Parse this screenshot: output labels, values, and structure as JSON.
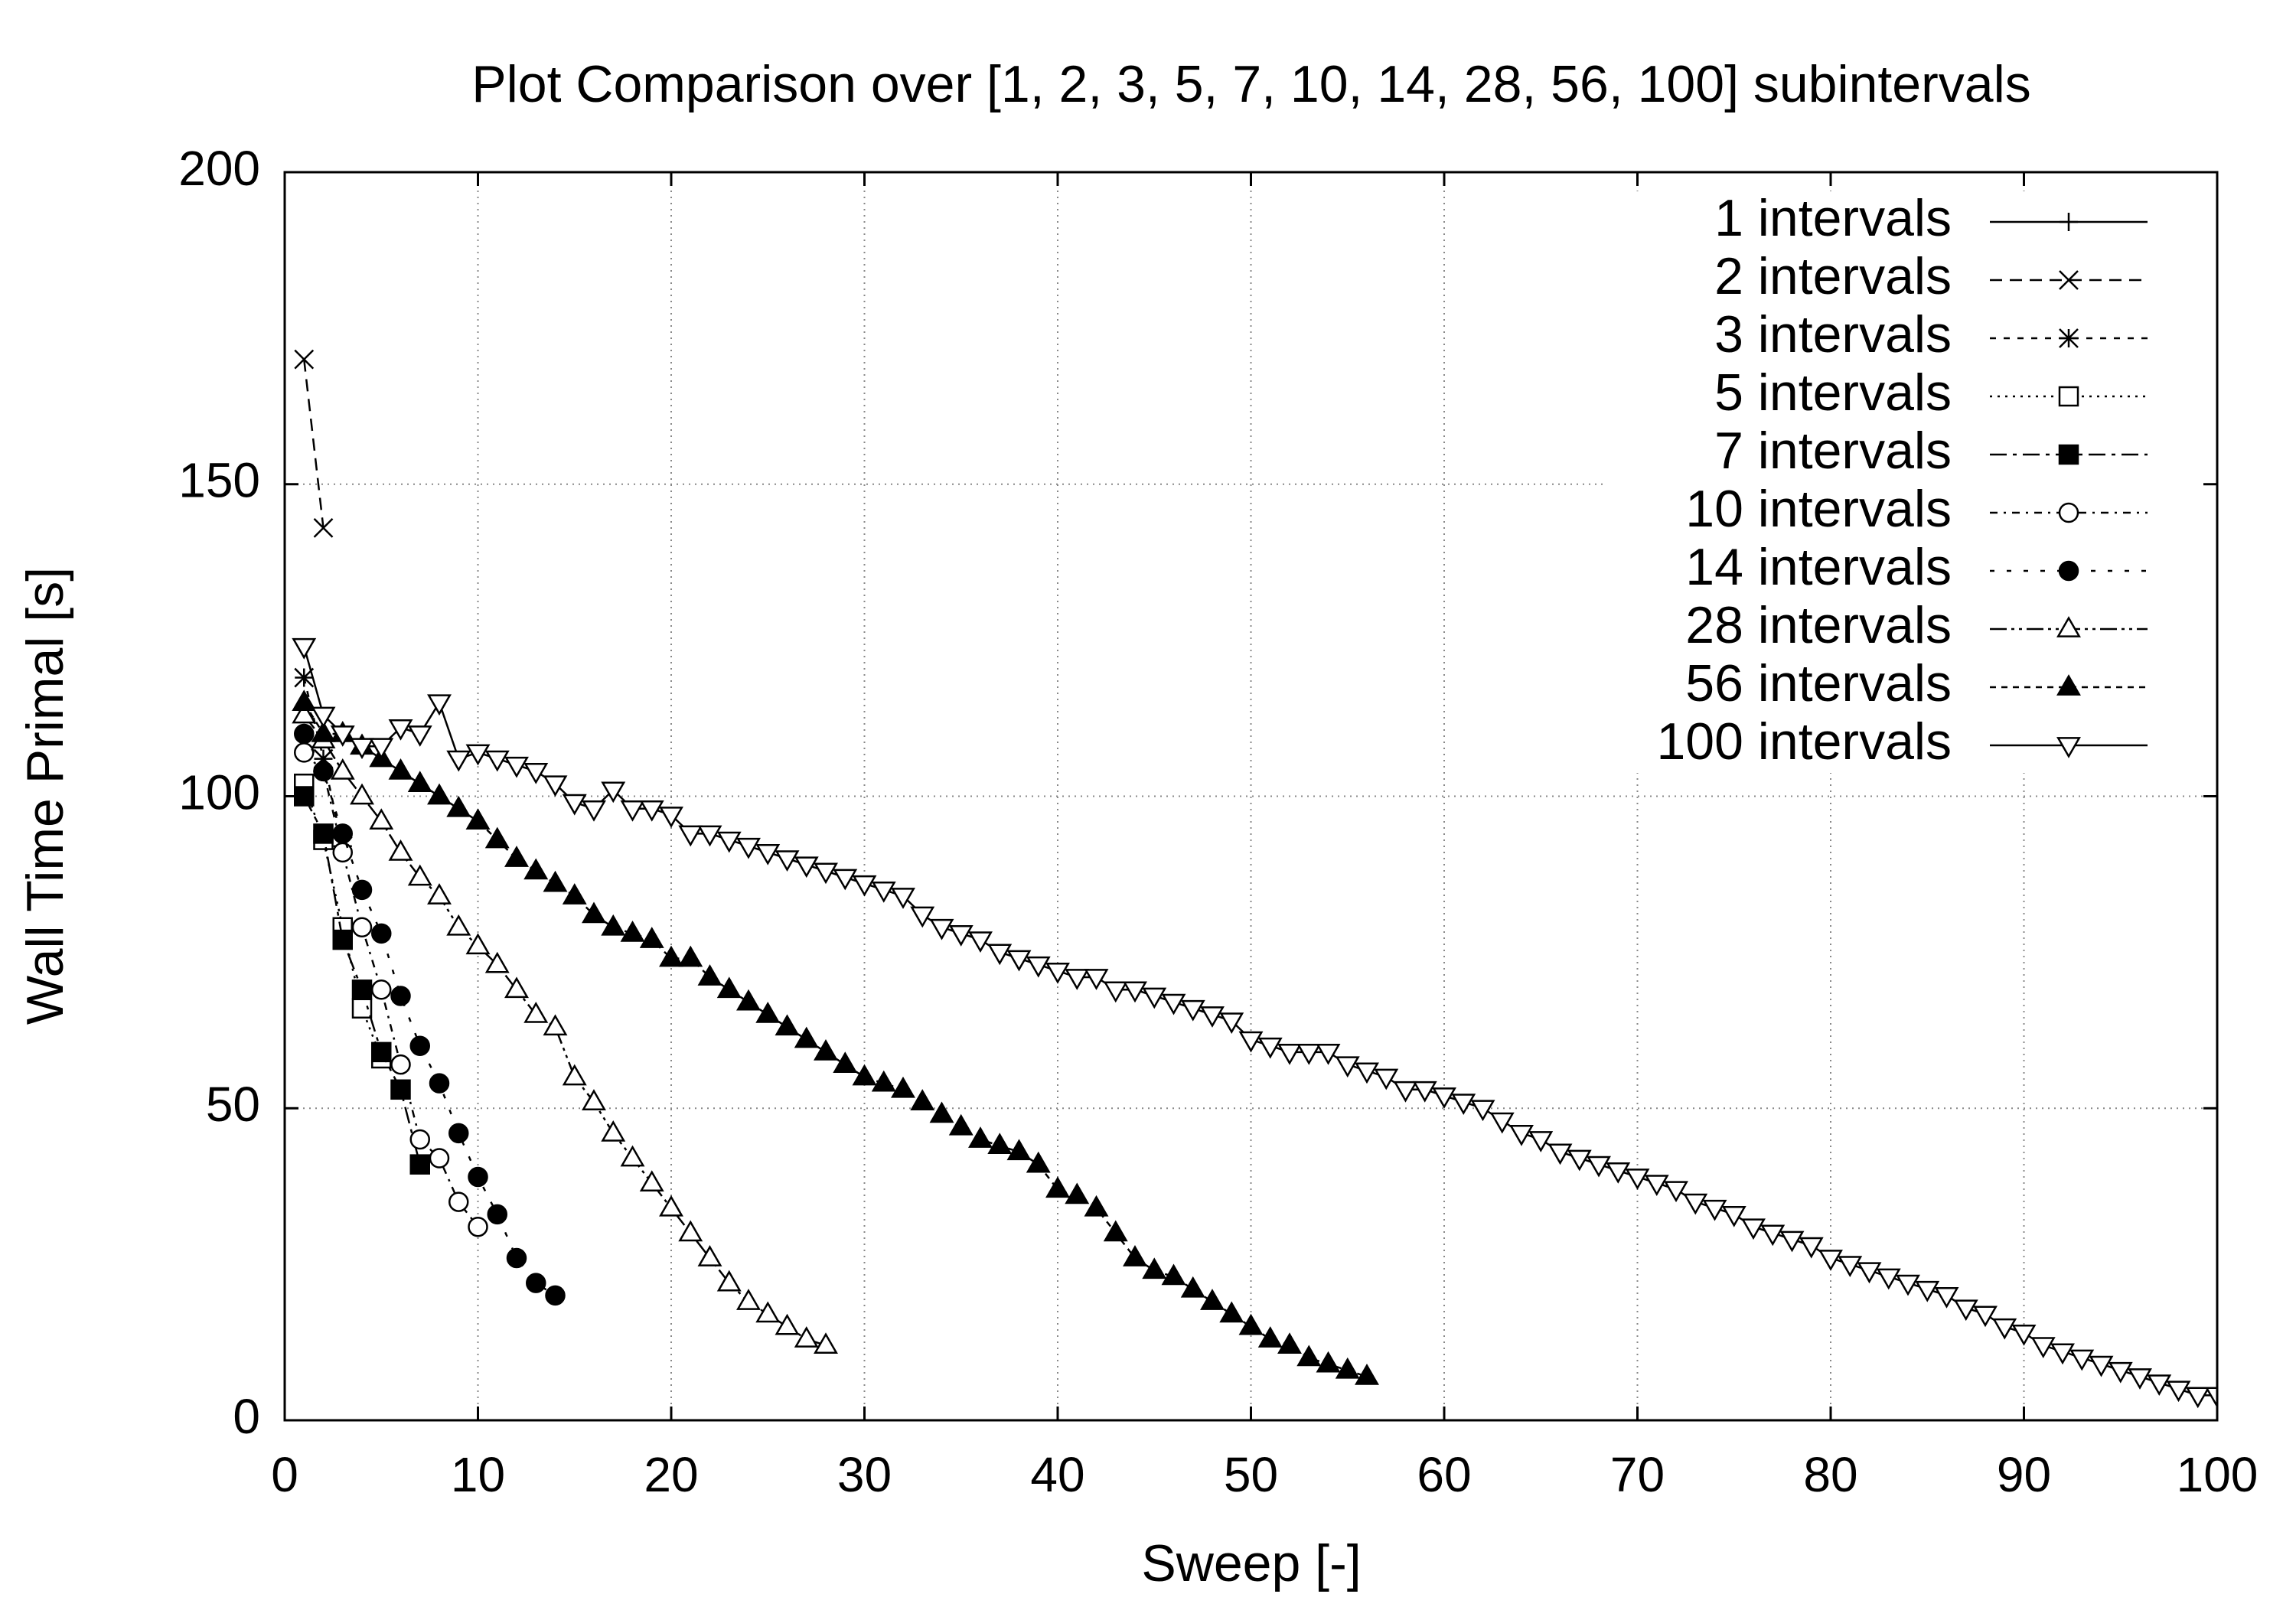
{
  "chart_data": {
    "type": "line",
    "title": "Plot Comparison over [1, 2, 3, 5, 7, 10, 14, 28, 56, 100] subintervals",
    "x_label": "Sweep [-]",
    "y_label": "Wall Time Primal [s]",
    "xlim": [
      0,
      100
    ],
    "xticks": [
      0,
      10,
      20,
      30,
      40,
      50,
      60,
      70,
      80,
      90,
      100
    ],
    "ylim": [
      0,
      200
    ],
    "yticks": [
      0,
      50,
      100,
      150,
      200
    ],
    "grid": true,
    "legend": "top-right",
    "series": [
      {
        "name": "1 intervals",
        "color": "#000000",
        "marker": "plus",
        "line": "solid",
        "x": [],
        "values": []
      },
      {
        "name": "2 intervals",
        "color": "#000000",
        "marker": "cross",
        "line": "dashed",
        "x": [
          1,
          2
        ],
        "values": [
          170,
          143
        ]
      },
      {
        "name": "3 intervals",
        "color": "#000000",
        "marker": "star",
        "line": "short-dashed",
        "x": [
          1,
          2,
          3
        ],
        "values": [
          119,
          106,
          92
        ]
      },
      {
        "name": "5 intervals",
        "color": "#000000",
        "marker": "square",
        "line": "dotted",
        "x": [
          1,
          2,
          3,
          4,
          5
        ],
        "values": [
          102,
          93,
          79,
          66,
          58
        ]
      },
      {
        "name": "7 intervals",
        "color": "#000000",
        "marker": "filled-square",
        "line": "dash-dot",
        "x": [
          1,
          2,
          3,
          4,
          5,
          6,
          7
        ],
        "values": [
          100,
          94,
          77,
          69,
          59,
          53,
          41
        ]
      },
      {
        "name": "10 intervals",
        "color": "#000000",
        "marker": "circle",
        "line": "dash-dot-fine",
        "x": [
          1,
          2,
          3,
          4,
          5,
          6,
          7,
          8,
          9,
          10
        ],
        "values": [
          107,
          104,
          91,
          79,
          69,
          57,
          45,
          42,
          35,
          31
        ]
      },
      {
        "name": "14 intervals",
        "color": "#000000",
        "marker": "filled-circle",
        "line": "sparse",
        "x": [
          1,
          2,
          3,
          4,
          5,
          6,
          7,
          8,
          9,
          10,
          11,
          12,
          13,
          14
        ],
        "values": [
          110,
          104,
          94,
          85,
          78,
          68,
          60,
          54,
          46,
          39,
          33,
          26,
          22,
          20
        ]
      },
      {
        "name": "28 intervals",
        "color": "#000000",
        "marker": "triangle",
        "line": "dash-dot-dot",
        "x": [
          1,
          2,
          3,
          4,
          5,
          6,
          7,
          8,
          9,
          10,
          11,
          12,
          13,
          14,
          15,
          16,
          17,
          18,
          19,
          20,
          21,
          22,
          23,
          24,
          25,
          26,
          27,
          28
        ],
        "values": [
          113,
          109,
          104,
          100,
          96,
          91,
          87,
          84,
          79,
          76,
          73,
          69,
          65,
          63,
          55,
          51,
          46,
          42,
          38,
          34,
          30,
          26,
          22,
          19,
          17,
          15,
          13,
          12
        ]
      },
      {
        "name": "56 intervals",
        "color": "#000000",
        "marker": "filled-triangle",
        "line": "fine-dashed",
        "x": [
          1,
          2,
          3,
          4,
          5,
          6,
          7,
          8,
          9,
          10,
          11,
          12,
          13,
          14,
          15,
          16,
          17,
          18,
          19,
          20,
          21,
          22,
          23,
          24,
          25,
          26,
          27,
          28,
          29,
          30,
          31,
          32,
          33,
          34,
          35,
          36,
          37,
          38,
          39,
          40,
          41,
          42,
          43,
          44,
          45,
          46,
          47,
          48,
          49,
          50,
          51,
          52,
          53,
          54,
          55,
          56
        ],
        "values": [
          115,
          110,
          110,
          108,
          106,
          104,
          102,
          100,
          98,
          96,
          93,
          90,
          88,
          86,
          84,
          81,
          79,
          78,
          77,
          74,
          74,
          71,
          69,
          67,
          65,
          63,
          61,
          59,
          57,
          55,
          54,
          53,
          51,
          49,
          47,
          45,
          44,
          43,
          41,
          37,
          36,
          34,
          30,
          26,
          24,
          23,
          21,
          19,
          17,
          15,
          13,
          12,
          10,
          9,
          8,
          7
        ]
      },
      {
        "name": "100 intervals",
        "color": "#000000",
        "marker": "down-triangle",
        "line": "solid",
        "x": [
          1,
          2,
          3,
          4,
          5,
          6,
          7,
          8,
          9,
          10,
          11,
          12,
          13,
          14,
          15,
          16,
          17,
          18,
          19,
          20,
          21,
          22,
          23,
          24,
          25,
          26,
          27,
          28,
          29,
          30,
          31,
          32,
          33,
          34,
          35,
          36,
          37,
          38,
          39,
          40,
          41,
          42,
          43,
          44,
          45,
          46,
          47,
          48,
          49,
          50,
          51,
          52,
          53,
          54,
          55,
          56,
          57,
          58,
          59,
          60,
          61,
          62,
          63,
          64,
          65,
          66,
          67,
          68,
          69,
          70,
          71,
          72,
          73,
          74,
          75,
          76,
          77,
          78,
          79,
          80,
          81,
          82,
          83,
          84,
          85,
          86,
          87,
          88,
          89,
          90,
          91,
          92,
          93,
          94,
          95,
          96,
          97,
          98,
          99,
          100
        ],
        "values": [
          124,
          113,
          110,
          108,
          108,
          111,
          110,
          115,
          106,
          107,
          106,
          105,
          104,
          102,
          99,
          98,
          101,
          98,
          98,
          97,
          94,
          94,
          93,
          92,
          91,
          90,
          89,
          88,
          87,
          86,
          85,
          84,
          81,
          79,
          78,
          77,
          75,
          74,
          73,
          72,
          71,
          71,
          69,
          69,
          68,
          67,
          66,
          65,
          64,
          61,
          60,
          59,
          59,
          59,
          57,
          56,
          55,
          53,
          53,
          52,
          51,
          50,
          48,
          46,
          45,
          43,
          42,
          41,
          40,
          39,
          38,
          37,
          35,
          34,
          33,
          31,
          30,
          29,
          28,
          26,
          25,
          24,
          23,
          22,
          21,
          20,
          18,
          17,
          15,
          14,
          12,
          11,
          10,
          9,
          8,
          7,
          6,
          5,
          4,
          4
        ]
      }
    ]
  }
}
